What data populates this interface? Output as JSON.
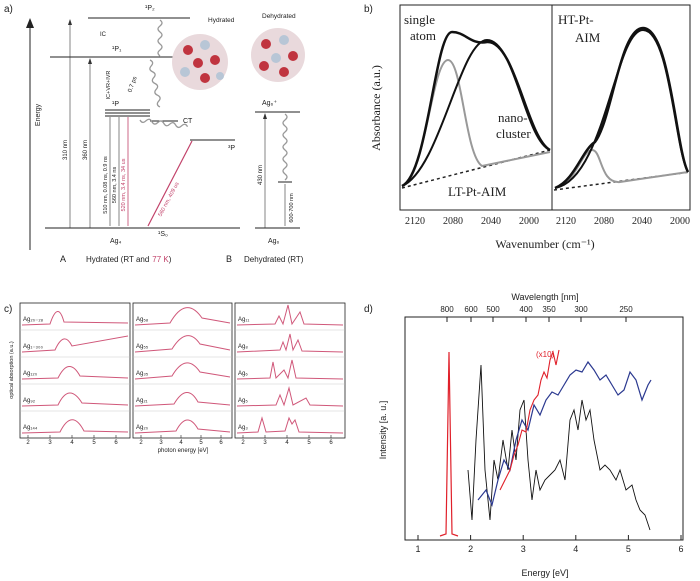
{
  "a": {
    "label": "a)",
    "energy": "Energy",
    "levels": {
      "p2": "¹P₂",
      "p1": "¹P₁",
      "p": "¹P",
      "p3": "³P",
      "s0": "¹S₀",
      "ct": "CT",
      "ag4": "Ag₄",
      "ag6p": "Ag₆⁺",
      "ag6": "Ag₆"
    },
    "processes": {
      "ic": "IC",
      "icvr": "IC+VR+IVR",
      "ps": "0.7 ps"
    },
    "transitions": [
      "310 nm",
      "360 nm",
      "510 nm, 0.08 ns, 0.9 ns",
      "560 nm, 3.4 ns",
      "520 nm, 3.4 ns, 34 us",
      "560 nm, 409 us",
      "430 nm",
      "600-700 nm"
    ],
    "insets": [
      "Hydrated",
      "Dehydrated"
    ],
    "captions": {
      "a": "A",
      "hydrated": [
        "Hydrated (RT and",
        "77 K",
        ")"
      ],
      "b": "B",
      "dehydrated": "Dehydrated (RT)"
    }
  },
  "b": {
    "label": "b)",
    "ylabel": "Absorbance (a.u.)",
    "xlabel": "Wavenumber (cm⁻¹)",
    "left": {
      "ticks": [
        "2120",
        "2080",
        "2040",
        "2000"
      ],
      "single_atom": [
        "single",
        "atom"
      ],
      "nano_cluster": [
        "nano-",
        "cluster"
      ],
      "name": "LT-Pt-AIM"
    },
    "right": {
      "ticks": [
        "2120",
        "2080",
        "2040",
        "2000"
      ],
      "name": [
        "HT-Pt-",
        "AIM"
      ]
    }
  },
  "c": {
    "label": "c)",
    "ylabel": "optical absorption (a.u.)",
    "xlabel": "photon energy [eV]",
    "columns": [
      {
        "rows": [
          "Ag₂₀₋₂₈",
          "Ag₁₋₃₀₀",
          "Ag₁₂₀",
          "Ag₉₂",
          "Ag₁₄₄"
        ],
        "ticks": [
          "2",
          "3",
          "4",
          "5",
          "6"
        ]
      },
      {
        "rows": [
          "Ag₅₈",
          "Ag₅₅",
          "Ag₃₅",
          "Ag₂₁",
          "Ag₂₀"
        ],
        "ticks": [
          "2",
          "3",
          "4",
          "5",
          "6"
        ]
      },
      {
        "rows": [
          "Ag₁₁",
          "Ag₈",
          "Ag₆",
          "Ag₅",
          "Ag₃"
        ],
        "ticks": [
          "2",
          "3",
          "4",
          "5",
          "6"
        ]
      }
    ]
  },
  "d": {
    "label": "d)",
    "top_label": "Wavelength [nm]",
    "ylabel": "Intensity [a. u.]",
    "xlabel": "Energy [eV]",
    "annotation": "(x10)",
    "xticks": [
      "1",
      "2",
      "3",
      "4",
      "5",
      "6"
    ],
    "top_ticks": [
      "800",
      "600",
      "500",
      "400",
      "350",
      "300",
      "250"
    ]
  }
}
